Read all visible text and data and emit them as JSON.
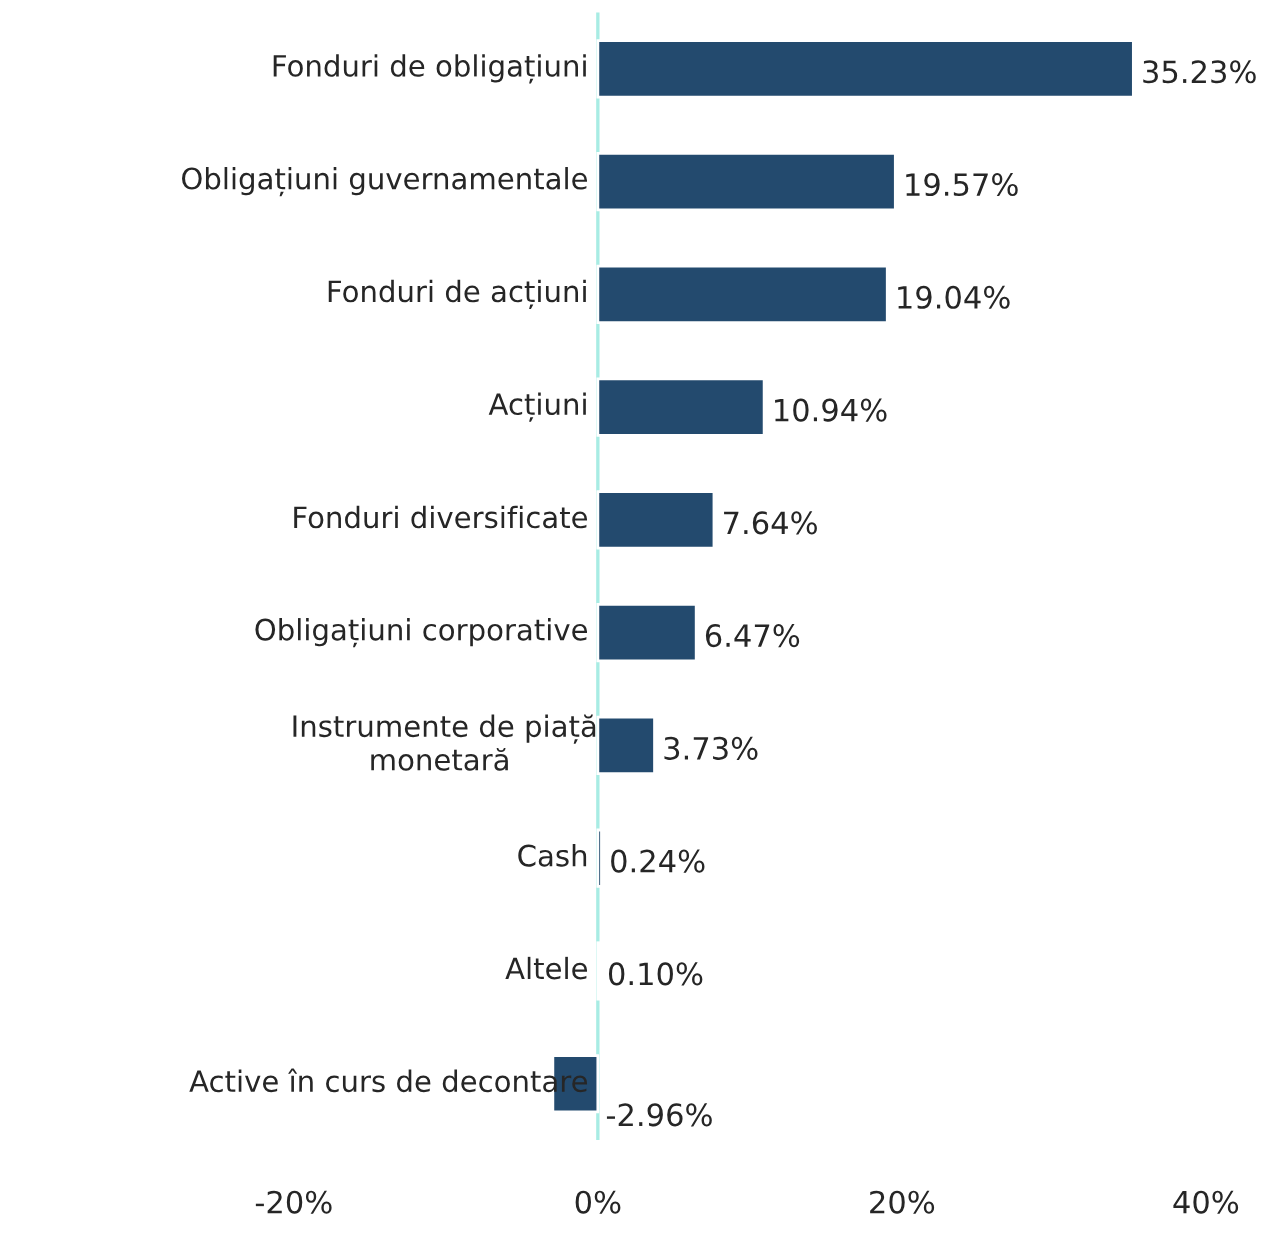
{
  "chart_data": {
    "type": "bar",
    "orientation": "horizontal",
    "categories": [
      "Fonduri de obligațiuni",
      "Obligațiuni guvernamentale",
      "Fonduri de acțiuni",
      "Acțiuni",
      "Fonduri diversificate",
      "Obligațiuni corporative",
      "Instrumente de piață\nmonetară",
      "Cash",
      "Altele",
      "Active în curs de decontare"
    ],
    "values": [
      35.23,
      19.57,
      19.04,
      10.94,
      7.64,
      6.47,
      3.73,
      0.24,
      0.1,
      -2.96
    ],
    "value_labels": [
      "35.23%",
      "19.57%",
      "19.04%",
      "10.94%",
      "7.64%",
      "6.47%",
      "3.73%",
      "0.24%",
      "0.10%",
      "-2.96%"
    ],
    "color": "#234a6e",
    "xlim": [
      -20,
      40
    ],
    "xticks": [
      {
        "value": -20,
        "label": "-20%"
      },
      {
        "value": 0,
        "label": "0%"
      },
      {
        "value": 20,
        "label": "20%"
      },
      {
        "value": 40,
        "label": "40%"
      }
    ],
    "grid": false,
    "legend": false
  }
}
